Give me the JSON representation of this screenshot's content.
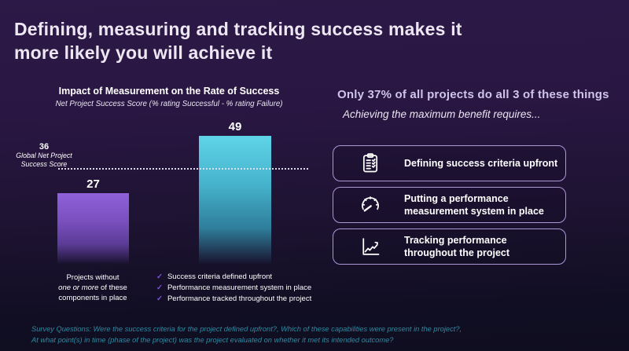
{
  "slide": {
    "title_line1": "Defining, measuring and tracking success makes it",
    "title_line2": "more likely you will achieve it"
  },
  "chart": {
    "title": "Impact of Measurement on the Rate of Success",
    "subtitle": "Net Project Success Score (% rating Successful - % rating Failure)",
    "benchmark_value": "36",
    "benchmark_label_line1": "Global Net Project",
    "benchmark_label_line2": "Success Score",
    "check_glyph": "✓",
    "caption_left_line1": "Projects without",
    "caption_left_line2_italic": "one or more",
    "caption_left_line2_rest": " of these",
    "caption_left_line3": "components in place",
    "checklist": [
      "Success criteria defined upfront",
      "Performance measurement system in place",
      "Performance tracked throughout the project"
    ]
  },
  "chart_data": {
    "type": "bar",
    "title": "Impact of Measurement on the Rate of Success",
    "subtitle": "Net Project Success Score (% rating Successful - % rating Failure)",
    "categories": [
      "Projects without one or more of these components in place",
      "Success criteria defined upfront; Performance measurement system in place; Performance tracked throughout the project"
    ],
    "values": [
      27,
      49
    ],
    "bar_colors": [
      "#8a5ed6",
      "#52cbe0"
    ],
    "benchmark": {
      "value": 36,
      "label": "Global Net Project Success Score"
    },
    "ylim": [
      0,
      55
    ],
    "grid": false,
    "legend": false
  },
  "right": {
    "heading": "Only 37% of all projects do all 3 of these things",
    "subheading": "Achieving the maximum benefit requires...",
    "cards": [
      {
        "icon": "clipboard-checklist-icon",
        "label_line1": "Defining success criteria upfront",
        "label_line2": ""
      },
      {
        "icon": "gauge-icon",
        "label_line1": "Putting a performance",
        "label_line2": "measurement system in place"
      },
      {
        "icon": "line-chart-icon",
        "label_line1": "Tracking performance",
        "label_line2": "throughout the project"
      }
    ]
  },
  "footer": {
    "line1": "Survey Questions: Were the success criteria for the project defined upfront?, Which of these capabilities were present in the project?,",
    "line2": "At what point(s) in time (phase of the project) was the project evaluated on whether it met its intended outcome?"
  }
}
